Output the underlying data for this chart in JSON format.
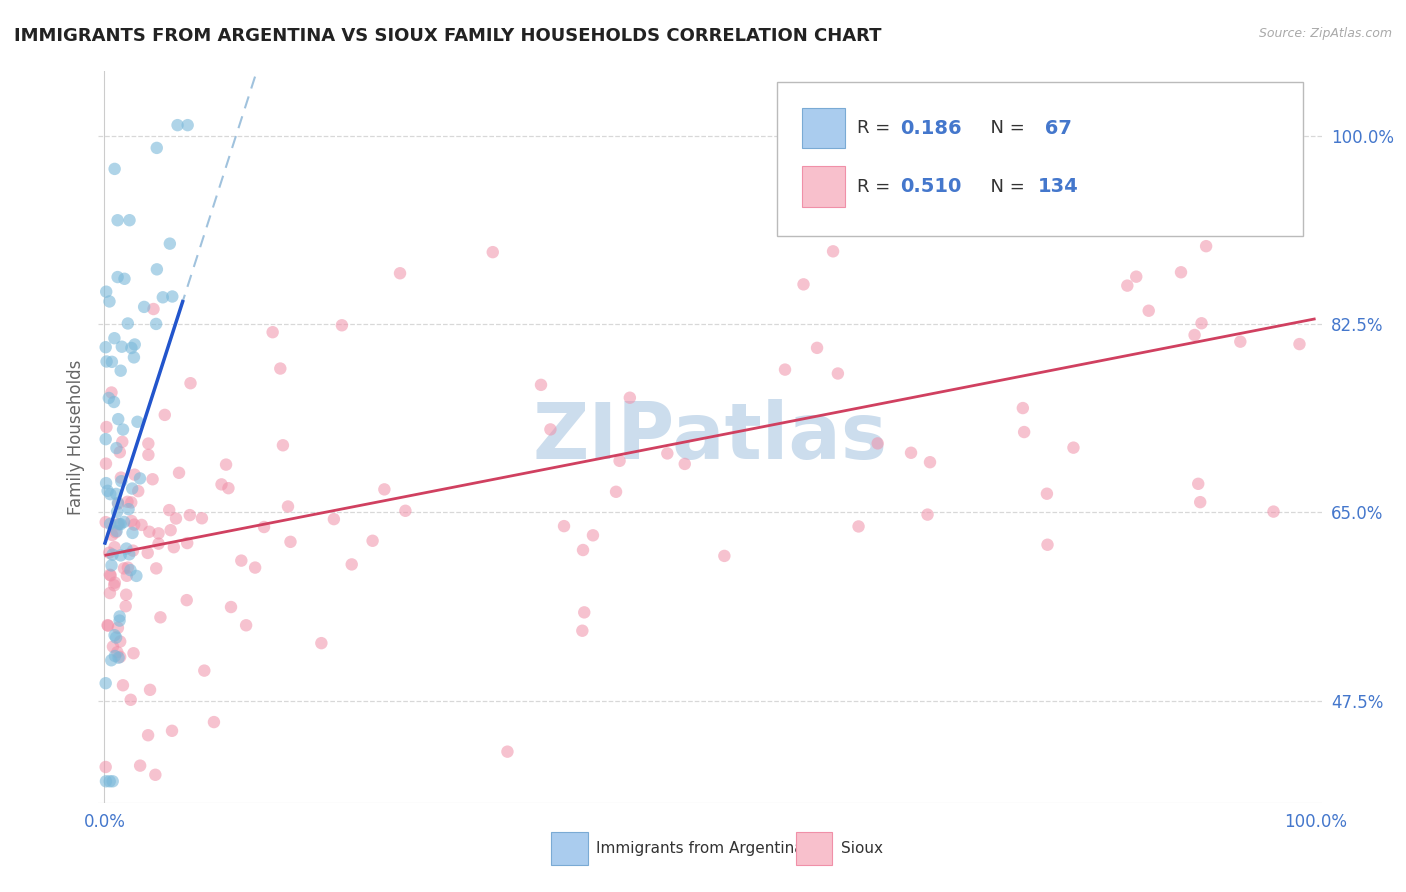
{
  "title": "IMMIGRANTS FROM ARGENTINA VS SIOUX FAMILY HOUSEHOLDS CORRELATION CHART",
  "source": "Source: ZipAtlas.com",
  "ylabel": "Family Households",
  "ytick_labels": [
    "47.5%",
    "65.0%",
    "82.5%",
    "100.0%"
  ],
  "ytick_values": [
    0.475,
    0.65,
    0.825,
    1.0
  ],
  "ymin": 0.38,
  "ymax": 1.06,
  "xmin": -0.005,
  "xmax": 1.005,
  "argentina_color": "#7ab8d9",
  "sioux_color": "#f090a8",
  "argentina_trend_color": "#2255cc",
  "sioux_trend_color": "#d04060",
  "argentina_dashed_color": "#90b8d8",
  "background_color": "#ffffff",
  "grid_color": "#d8d8d8",
  "axis_label_color": "#4477cc",
  "tick_color": "#555555",
  "watermark_color": "#ccdded",
  "legend_R1": "0.186",
  "legend_N1": "67",
  "legend_R2": "0.510",
  "legend_N2": "134",
  "legend_text_color": "#333333",
  "legend_value_color": "#4477cc",
  "source_color": "#aaaaaa"
}
